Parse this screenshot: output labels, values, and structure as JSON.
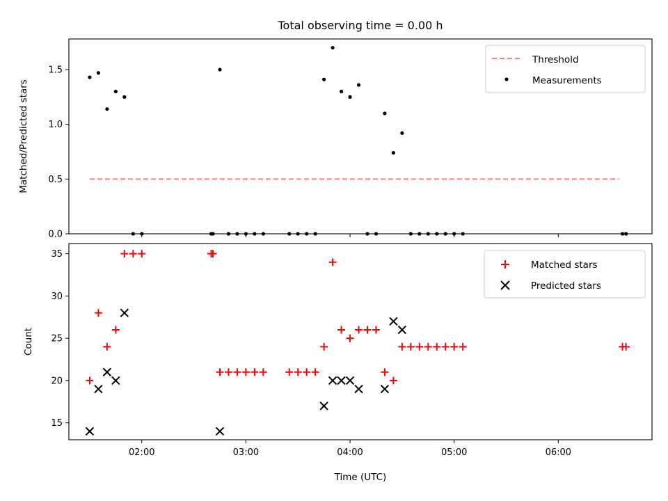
{
  "title": "Total observing time = 0.00 h",
  "chart_data": [
    {
      "type": "scatter",
      "ylabel": "Matched/Predicted stars",
      "xlabel": "",
      "xlim": [
        "01:18",
        "06:54"
      ],
      "ylim": [
        0,
        1.78
      ],
      "yticks": [
        0.0,
        0.5,
        1.0,
        1.5
      ],
      "ytick_labels": [
        "0.0",
        "0.5",
        "1.0",
        "1.5"
      ],
      "legend": {
        "position": "top-right",
        "entries": [
          "Threshold",
          "Measurements"
        ]
      },
      "threshold": {
        "name": "Threshold",
        "y": 0.5,
        "x_start": "01:30",
        "x_end": "06:35",
        "color": "#ff7f7f",
        "style": "dashed"
      },
      "series": [
        {
          "name": "Measurements",
          "color": "#000000",
          "marker": "dot",
          "points": [
            [
              "01:30",
              1.43
            ],
            [
              "01:35",
              1.47
            ],
            [
              "01:40",
              1.14
            ],
            [
              "01:45",
              1.3
            ],
            [
              "01:50",
              1.25
            ],
            [
              "01:55",
              0.0
            ],
            [
              "02:00",
              0.0
            ],
            [
              "02:40",
              0.0
            ],
            [
              "02:41",
              0.0
            ],
            [
              "02:45",
              1.5
            ],
            [
              "02:50",
              0.0
            ],
            [
              "02:55",
              0.0
            ],
            [
              "03:00",
              0.0
            ],
            [
              "03:05",
              0.0
            ],
            [
              "03:10",
              0.0
            ],
            [
              "03:25",
              0.0
            ],
            [
              "03:30",
              0.0
            ],
            [
              "03:35",
              0.0
            ],
            [
              "03:40",
              0.0
            ],
            [
              "03:45",
              1.41
            ],
            [
              "03:50",
              1.7
            ],
            [
              "03:55",
              1.3
            ],
            [
              "04:00",
              1.25
            ],
            [
              "04:05",
              1.36
            ],
            [
              "04:10",
              0.0
            ],
            [
              "04:15",
              0.0
            ],
            [
              "04:20",
              1.1
            ],
            [
              "04:25",
              0.74
            ],
            [
              "04:30",
              0.92
            ],
            [
              "04:35",
              0.0
            ],
            [
              "04:40",
              0.0
            ],
            [
              "04:45",
              0.0
            ],
            [
              "04:50",
              0.0
            ],
            [
              "04:55",
              0.0
            ],
            [
              "05:00",
              0.0
            ],
            [
              "05:05",
              0.0
            ],
            [
              "06:37",
              0.0
            ],
            [
              "06:39",
              0.0
            ]
          ]
        }
      ]
    },
    {
      "type": "scatter",
      "ylabel": "Count",
      "xlabel": "Time (UTC)",
      "xlim": [
        "01:18",
        "06:54"
      ],
      "ylim": [
        13,
        36.2
      ],
      "yticks": [
        15,
        20,
        25,
        30,
        35
      ],
      "ytick_labels": [
        "15",
        "20",
        "25",
        "30",
        "35"
      ],
      "xticks": [
        "02:00",
        "03:00",
        "04:00",
        "05:00",
        "06:00"
      ],
      "xtick_labels": [
        "02:00",
        "03:00",
        "04:00",
        "05:00",
        "06:00"
      ],
      "legend": {
        "position": "top-right",
        "entries": [
          "Matched stars",
          "Predicted stars"
        ]
      },
      "series": [
        {
          "name": "Matched stars",
          "color": "#ff0000",
          "marker": "plus",
          "points": [
            [
              "01:30",
              20
            ],
            [
              "01:35",
              28
            ],
            [
              "01:40",
              24
            ],
            [
              "01:45",
              26
            ],
            [
              "01:50",
              35
            ],
            [
              "01:55",
              35
            ],
            [
              "02:00",
              35
            ],
            [
              "02:40",
              35
            ],
            [
              "02:41",
              35
            ],
            [
              "02:45",
              21
            ],
            [
              "02:50",
              21
            ],
            [
              "02:55",
              21
            ],
            [
              "03:00",
              21
            ],
            [
              "03:05",
              21
            ],
            [
              "03:10",
              21
            ],
            [
              "03:25",
              21
            ],
            [
              "03:30",
              21
            ],
            [
              "03:35",
              21
            ],
            [
              "03:40",
              21
            ],
            [
              "03:45",
              24
            ],
            [
              "03:50",
              34
            ],
            [
              "03:55",
              26
            ],
            [
              "04:00",
              25
            ],
            [
              "04:05",
              26
            ],
            [
              "04:10",
              26
            ],
            [
              "04:15",
              26
            ],
            [
              "04:20",
              21
            ],
            [
              "04:25",
              20
            ],
            [
              "04:30",
              24
            ],
            [
              "04:35",
              24
            ],
            [
              "04:40",
              24
            ],
            [
              "04:45",
              24
            ],
            [
              "04:50",
              24
            ],
            [
              "04:55",
              24
            ],
            [
              "05:00",
              24
            ],
            [
              "05:05",
              24
            ],
            [
              "06:37",
              24
            ],
            [
              "06:39",
              24
            ]
          ]
        },
        {
          "name": "Predicted stars",
          "color": "#000000",
          "marker": "x",
          "points": [
            [
              "01:30",
              14
            ],
            [
              "01:35",
              19
            ],
            [
              "01:40",
              21
            ],
            [
              "01:45",
              20
            ],
            [
              "01:50",
              28
            ],
            [
              "02:45",
              14
            ],
            [
              "03:45",
              17
            ],
            [
              "03:50",
              20
            ],
            [
              "03:55",
              20
            ],
            [
              "04:00",
              20
            ],
            [
              "04:05",
              19
            ],
            [
              "04:20",
              19
            ],
            [
              "04:25",
              27
            ],
            [
              "04:30",
              26
            ]
          ]
        }
      ]
    }
  ]
}
